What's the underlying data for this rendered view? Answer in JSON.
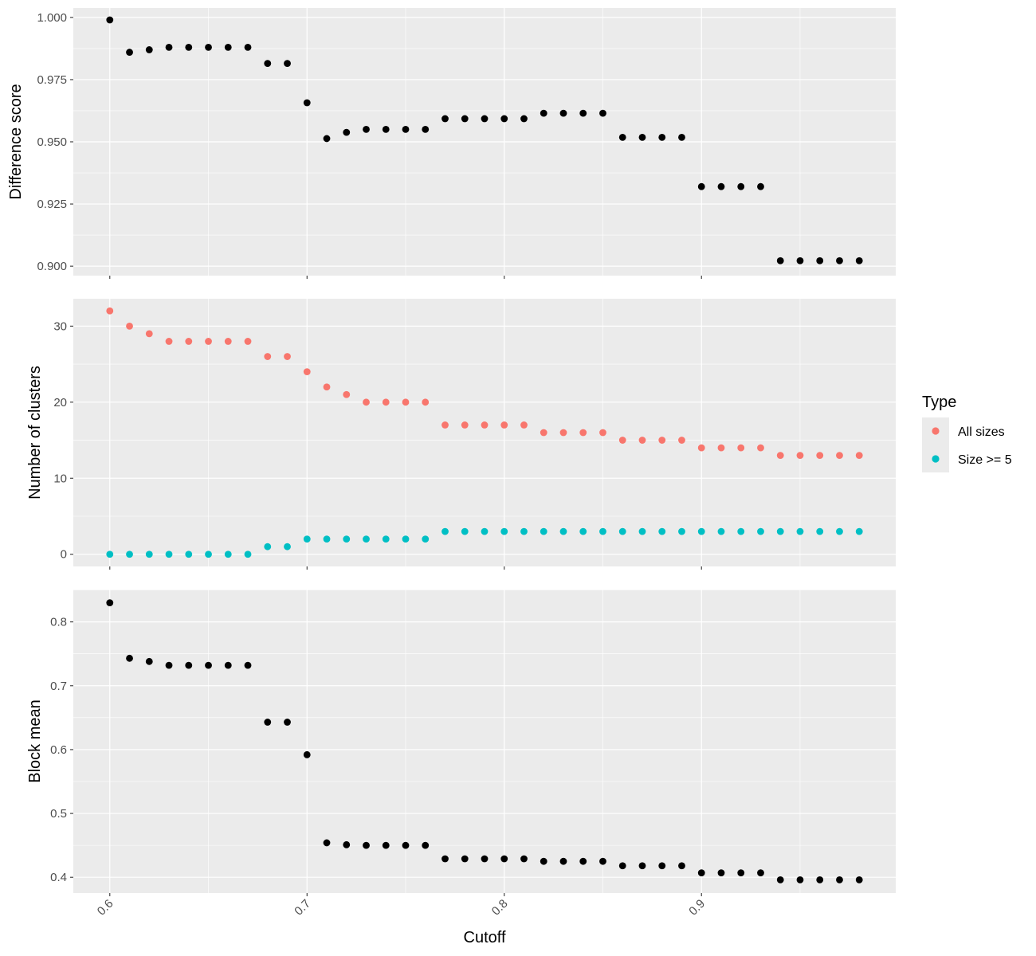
{
  "chart_data": {
    "type": "scatter",
    "xlabel": "Cutoff",
    "x": [
      0.6,
      0.61,
      0.62,
      0.63,
      0.64,
      0.65,
      0.66,
      0.67,
      0.68,
      0.69,
      0.7,
      0.71,
      0.72,
      0.73,
      0.74,
      0.75,
      0.76,
      0.77,
      0.78,
      0.79,
      0.8,
      0.81,
      0.82,
      0.83,
      0.84,
      0.85,
      0.86,
      0.87,
      0.88,
      0.89,
      0.9,
      0.91,
      0.92,
      0.93,
      0.94,
      0.95,
      0.96,
      0.97,
      0.98
    ],
    "xlim": [
      0.5815,
      0.9985
    ],
    "xticks": [
      "0.6",
      "0.7",
      "0.8",
      "0.9"
    ],
    "xtick_values": [
      0.6,
      0.7,
      0.8,
      0.9
    ],
    "grid": true,
    "panels": [
      {
        "ylabel": "Difference score",
        "ylim": [
          0.8962,
          1.0038
        ],
        "yticks": [
          "0.900",
          "0.925",
          "0.950",
          "0.975",
          "1.000"
        ],
        "ytick_values": [
          0.9,
          0.925,
          0.95,
          0.975,
          1.0
        ],
        "series": [
          {
            "color": "#000000",
            "values": [
              0.999,
              0.986,
              0.987,
              0.988,
              0.988,
              0.988,
              0.988,
              0.988,
              0.9815,
              0.9815,
              0.9657,
              0.9513,
              0.9538,
              0.955,
              0.955,
              0.955,
              0.955,
              0.9593,
              0.9593,
              0.9593,
              0.9593,
              0.9593,
              0.9615,
              0.9615,
              0.9615,
              0.9615,
              0.9518,
              0.9518,
              0.9518,
              0.9518,
              0.932,
              0.932,
              0.932,
              0.932,
              0.9022,
              0.9022,
              0.9022,
              0.9022,
              0.9022
            ]
          }
        ]
      },
      {
        "ylabel": "Number of clusters",
        "ylim": [
          -1.6,
          33.6
        ],
        "yticks": [
          "0",
          "10",
          "20",
          "30"
        ],
        "ytick_values": [
          0,
          10,
          20,
          30
        ],
        "series": [
          {
            "name": "All sizes",
            "color": "#F8766D",
            "values": [
              32,
              30,
              29,
              28,
              28,
              28,
              28,
              28,
              26,
              26,
              24,
              22,
              21,
              20,
              20,
              20,
              20,
              17,
              17,
              17,
              17,
              17,
              16,
              16,
              16,
              16,
              15,
              15,
              15,
              15,
              14,
              14,
              14,
              14,
              13,
              13,
              13,
              13,
              13
            ]
          },
          {
            "name": "Size >= 5",
            "color": "#00BFC4",
            "values": [
              0,
              0,
              0,
              0,
              0,
              0,
              0,
              0,
              1,
              1,
              2,
              2,
              2,
              2,
              2,
              2,
              2,
              3,
              3,
              3,
              3,
              3,
              3,
              3,
              3,
              3,
              3,
              3,
              3,
              3,
              3,
              3,
              3,
              3,
              3,
              3,
              3,
              3,
              3
            ]
          }
        ]
      },
      {
        "ylabel": "Block mean",
        "ylim": [
          0.3753,
          0.8507
        ],
        "yticks": [
          "0.4",
          "0.5",
          "0.6",
          "0.7",
          "0.8"
        ],
        "ytick_values": [
          0.4,
          0.5,
          0.6,
          0.7,
          0.8
        ],
        "series": [
          {
            "color": "#000000",
            "values": [
              0.83,
              0.743,
              0.738,
              0.732,
              0.732,
              0.732,
              0.732,
              0.732,
              0.643,
              0.643,
              0.592,
              0.454,
              0.451,
              0.45,
              0.45,
              0.45,
              0.45,
              0.429,
              0.429,
              0.429,
              0.429,
              0.429,
              0.425,
              0.425,
              0.425,
              0.425,
              0.418,
              0.418,
              0.418,
              0.418,
              0.407,
              0.407,
              0.407,
              0.407,
              0.396,
              0.396,
              0.396,
              0.396,
              0.396
            ]
          }
        ]
      }
    ],
    "legend": {
      "title": "Type",
      "position": "right",
      "entries": [
        {
          "label": "All sizes",
          "color": "#F8766D"
        },
        {
          "label": "Size >= 5",
          "color": "#00BFC4"
        }
      ]
    }
  }
}
